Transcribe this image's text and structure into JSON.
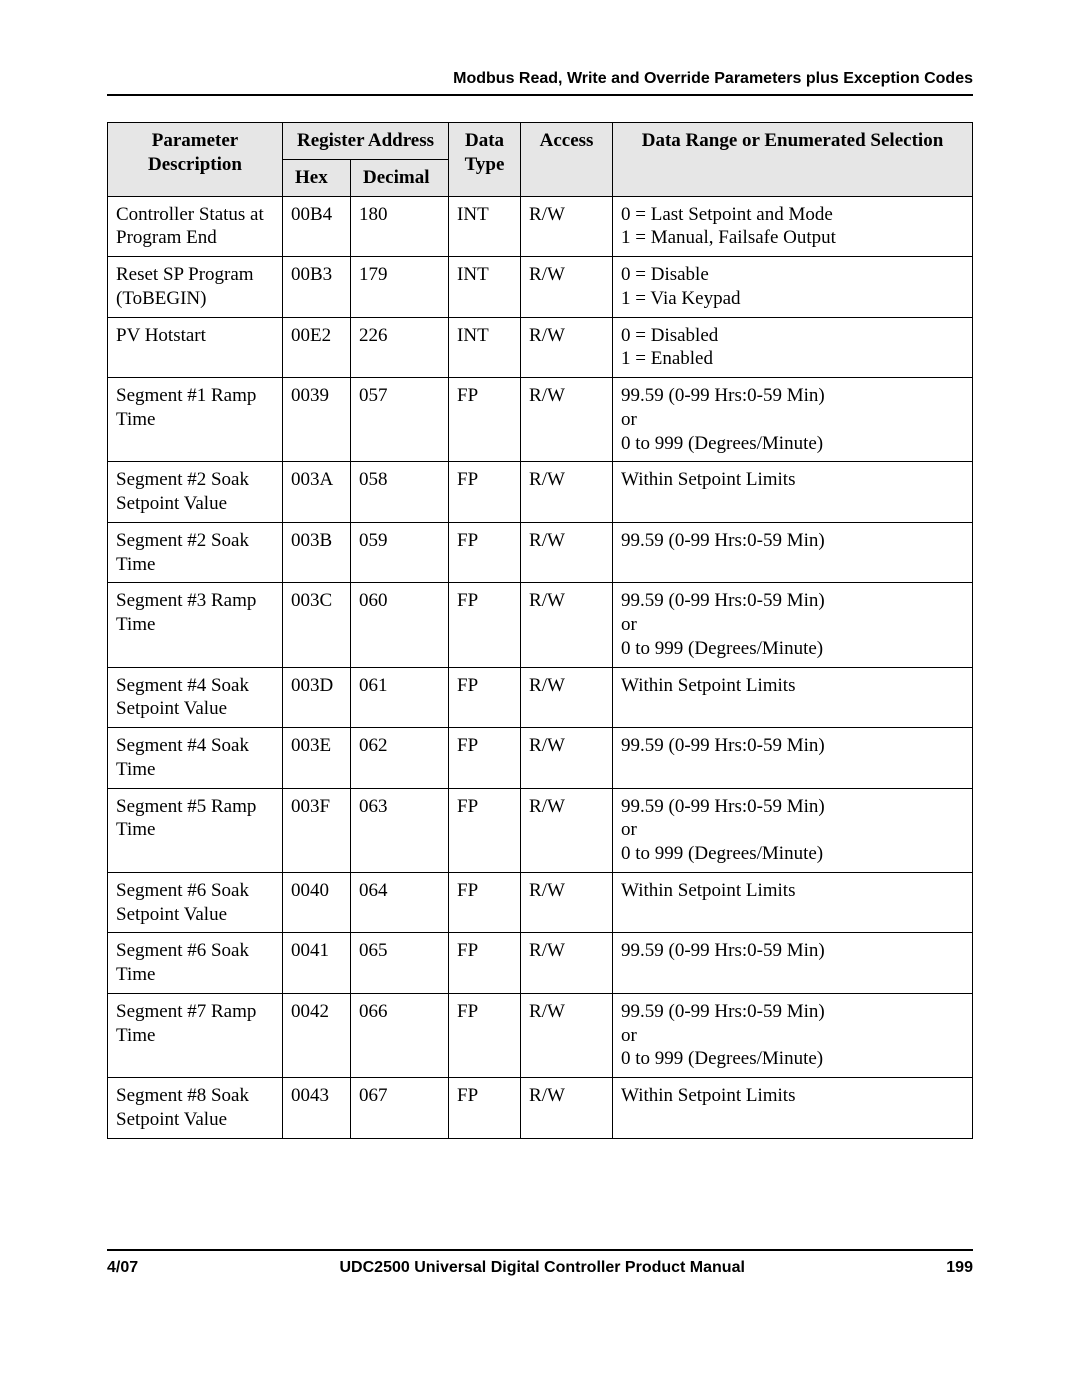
{
  "header": {
    "running_title": "Modbus Read, Write and Override Parameters plus Exception Codes"
  },
  "table": {
    "columns": {
      "param": "Parameter Description",
      "register": "Register Address",
      "hex": "Hex",
      "dec": "Decimal",
      "type": "Data Type",
      "access": "Access",
      "range": "Data Range or Enumerated Selection"
    },
    "rows": [
      {
        "param": "Controller Status at Program End",
        "hex": "00B4",
        "dec": "180",
        "type": "INT",
        "access": "R/W",
        "range": "0 = Last Setpoint and Mode\n1 = Manual, Failsafe Output"
      },
      {
        "param": "Reset SP Program (ToBEGIN)",
        "hex": "00B3",
        "dec": "179",
        "type": "INT",
        "access": "R/W",
        "range": "0 = Disable\n1 = Via Keypad"
      },
      {
        "param": "PV Hotstart",
        "hex": "00E2",
        "dec": "226",
        "type": "INT",
        "access": "R/W",
        "range": "0 = Disabled\n1 = Enabled"
      },
      {
        "param": "Segment #1 Ramp Time",
        "hex": "0039",
        "dec": "057",
        "type": "FP",
        "access": "R/W",
        "range": "99.59 (0-99 Hrs:0-59 Min)\nor\n0 to 999 (Degrees/Minute)"
      },
      {
        "param": "Segment #2 Soak Setpoint Value",
        "hex": "003A",
        "dec": "058",
        "type": "FP",
        "access": "R/W",
        "range": "Within Setpoint Limits"
      },
      {
        "param": "Segment #2 Soak Time",
        "hex": "003B",
        "dec": "059",
        "type": "FP",
        "access": "R/W",
        "range": "99.59 (0-99 Hrs:0-59 Min)"
      },
      {
        "param": "Segment #3 Ramp Time",
        "hex": "003C",
        "dec": "060",
        "type": "FP",
        "access": "R/W",
        "range": "99.59 (0-99 Hrs:0-59 Min)\nor\n0 to 999 (Degrees/Minute)"
      },
      {
        "param": "Segment #4 Soak Setpoint Value",
        "hex": "003D",
        "dec": "061",
        "type": "FP",
        "access": "R/W",
        "range": "Within Setpoint Limits"
      },
      {
        "param": "Segment #4 Soak Time",
        "hex": "003E",
        "dec": "062",
        "type": "FP",
        "access": "R/W",
        "range": "99.59 (0-99 Hrs:0-59 Min)"
      },
      {
        "param": "Segment #5 Ramp Time",
        "hex": "003F",
        "dec": "063",
        "type": "FP",
        "access": "R/W",
        "range": "99.59 (0-99 Hrs:0-59 Min)\nor\n0 to 999 (Degrees/Minute)"
      },
      {
        "param": "Segment #6 Soak Setpoint Value",
        "hex": "0040",
        "dec": "064",
        "type": "FP",
        "access": "R/W",
        "range": "Within Setpoint Limits"
      },
      {
        "param": "Segment #6 Soak Time",
        "hex": "0041",
        "dec": "065",
        "type": "FP",
        "access": "R/W",
        "range": "99.59 (0-99 Hrs:0-59 Min)"
      },
      {
        "param": "Segment #7 Ramp Time",
        "hex": "0042",
        "dec": "066",
        "type": "FP",
        "access": "R/W",
        "range": "99.59 (0-99 Hrs:0-59 Min)\nor\n0 to 999 (Degrees/Minute)"
      },
      {
        "param": "Segment #8 Soak Setpoint Value",
        "hex": "0043",
        "dec": "067",
        "type": "FP",
        "access": "R/W",
        "range": "Within Setpoint Limits"
      }
    ]
  },
  "footer": {
    "date": "4/07",
    "title": "UDC2500 Universal Digital Controller Product Manual",
    "page": "199"
  }
}
